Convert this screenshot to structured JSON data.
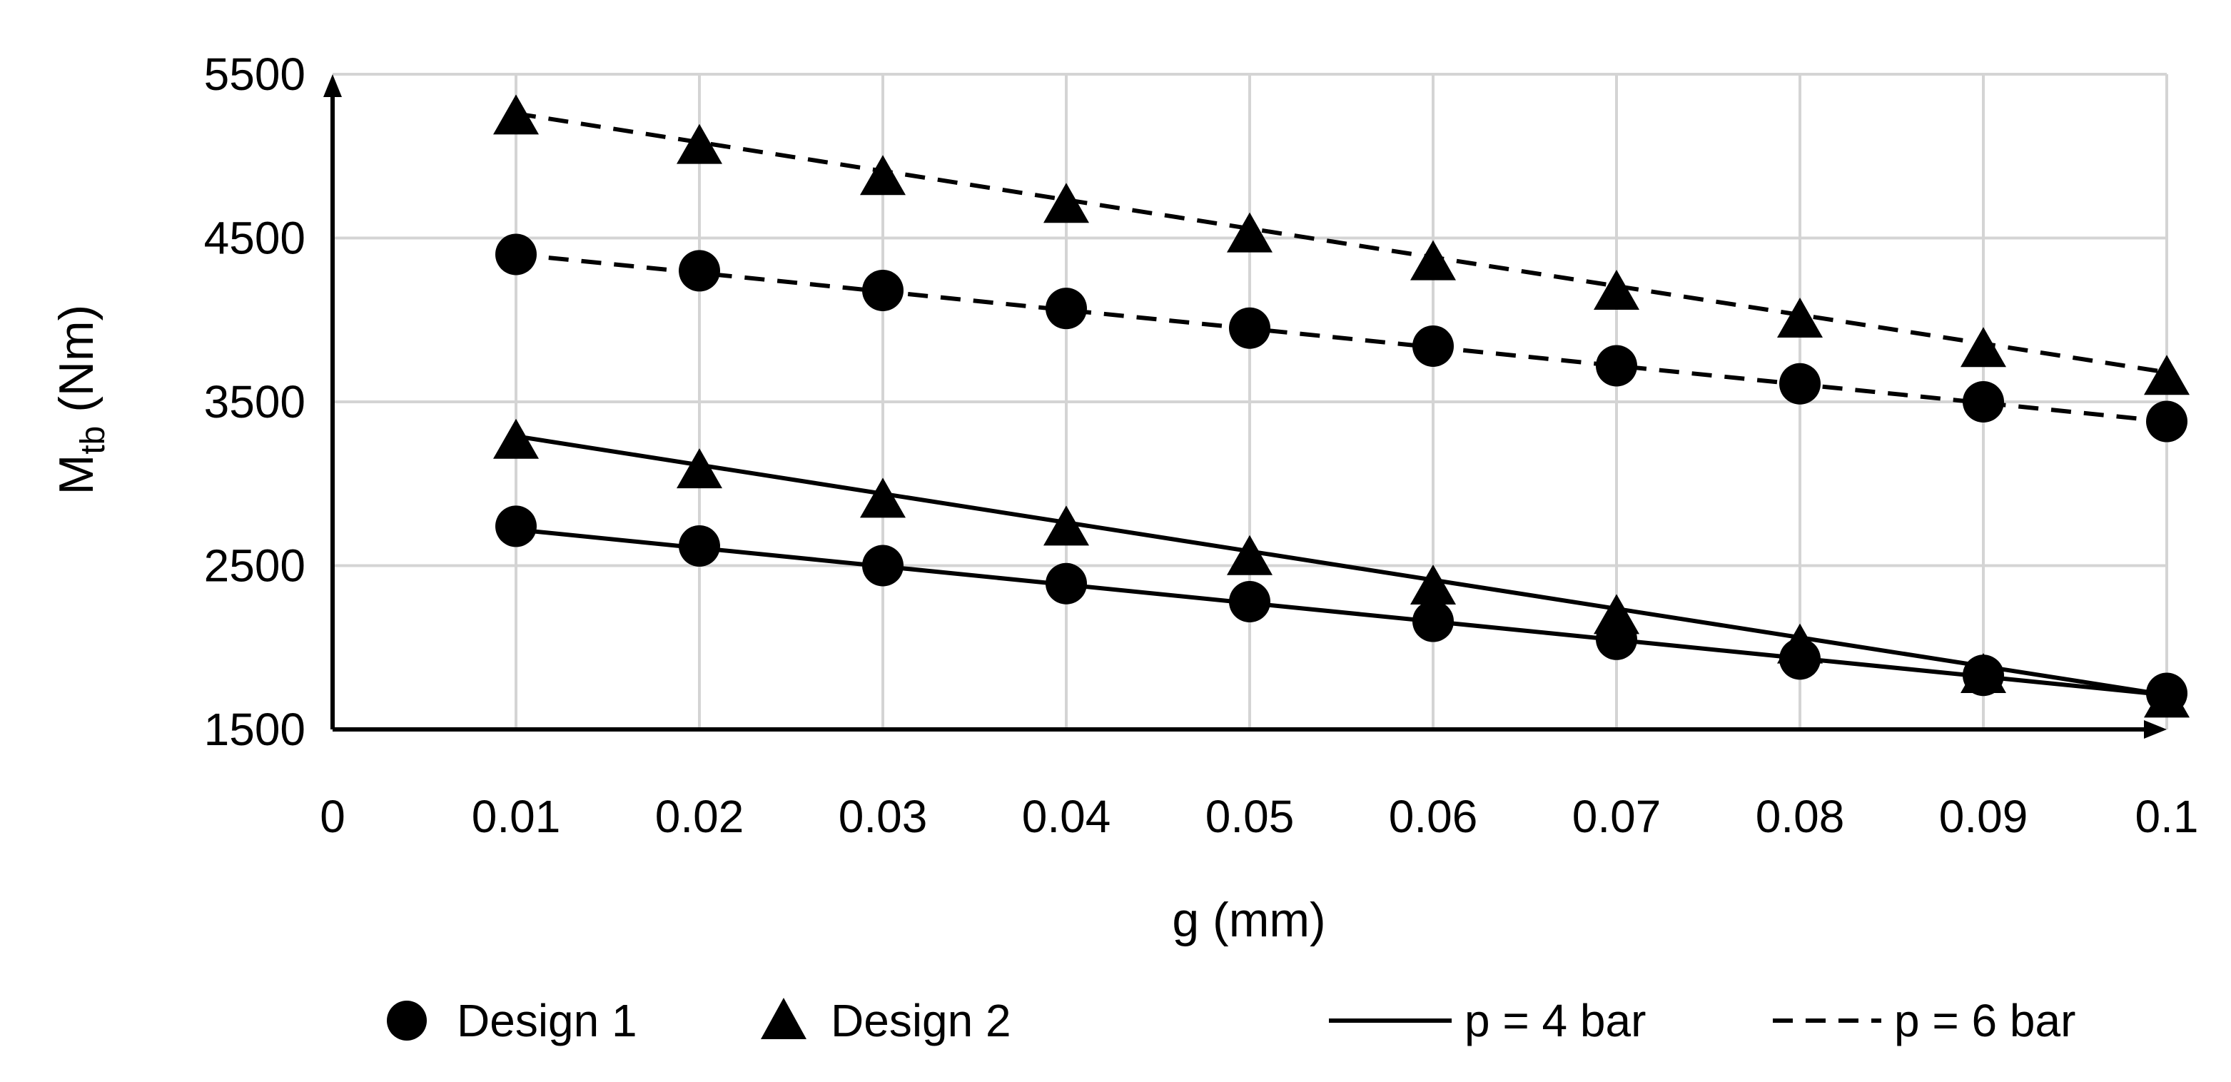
{
  "chart_data": {
    "type": "line",
    "title": "",
    "xlabel": "g (mm)",
    "ylabel_main": "M",
    "ylabel_sub": "tb",
    "ylabel_unit": " (Nm)",
    "xlim": [
      0,
      0.1
    ],
    "ylim": [
      1500,
      5500
    ],
    "grid": true,
    "xticks": [
      0,
      0.01,
      0.02,
      0.03,
      0.04,
      0.05,
      0.06,
      0.07,
      0.08,
      0.09,
      0.1
    ],
    "xtick_labels": [
      "0",
      "0.01",
      "0.02",
      "0.03",
      "0.04",
      "0.05",
      "0.06",
      "0.07",
      "0.08",
      "0.09",
      "0.1"
    ],
    "yticks": [
      1500,
      2500,
      3500,
      4500,
      5500
    ],
    "ytick_labels": [
      "1500",
      "2500",
      "3500",
      "4500",
      "5500"
    ],
    "x": [
      0.01,
      0.02,
      0.03,
      0.04,
      0.05,
      0.06,
      0.07,
      0.08,
      0.09,
      0.1
    ],
    "series": [
      {
        "name": "Design 1, p = 4 bar",
        "marker": "circle",
        "line": "solid",
        "points": [
          2740,
          2620,
          2500,
          2390,
          2280,
          2160,
          2050,
          1930,
          1830,
          1720
        ],
        "fit": [
          2720,
          1710
        ]
      },
      {
        "name": "Design 2, p = 4 bar",
        "marker": "triangle",
        "line": "solid",
        "points": [
          3270,
          3090,
          2910,
          2740,
          2560,
          2380,
          2200,
          2020,
          1840,
          1690
        ],
        "fit": [
          3290,
          1710
        ]
      },
      {
        "name": "Design 1, p = 6 bar",
        "marker": "circle",
        "line": "dashed",
        "points": [
          4400,
          4300,
          4180,
          4070,
          3950,
          3840,
          3720,
          3610,
          3500,
          3380
        ],
        "fit": [
          4400,
          3380
        ]
      },
      {
        "name": "Design 2, p = 6 bar",
        "marker": "triangle",
        "line": "dashed",
        "points": [
          5250,
          5070,
          4880,
          4710,
          4530,
          4360,
          4180,
          4010,
          3830,
          3660
        ],
        "fit": [
          5260,
          3680
        ]
      }
    ],
    "legend": {
      "position": "bottom",
      "items": [
        {
          "label": "Design 1",
          "symbol": "circle"
        },
        {
          "label": "Design 2",
          "symbol": "triangle"
        },
        {
          "label": "p = 4 bar",
          "symbol": "solid-line"
        },
        {
          "label": "p = 6 bar",
          "symbol": "dashed-line"
        }
      ]
    }
  }
}
